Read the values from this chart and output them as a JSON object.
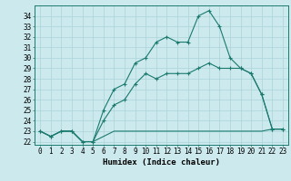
{
  "xlabel": "Humidex (Indice chaleur)",
  "bg_color": "#cce9ed",
  "grid_color": "#aad4d9",
  "line_color": "#1a7a6e",
  "x_hours": [
    0,
    1,
    2,
    3,
    4,
    5,
    6,
    7,
    8,
    9,
    10,
    11,
    12,
    13,
    14,
    15,
    16,
    17,
    18,
    19,
    20,
    21,
    22,
    23
  ],
  "line1": [
    23.0,
    22.5,
    23.0,
    23.0,
    22.0,
    22.0,
    25.0,
    27.0,
    27.5,
    29.5,
    30.0,
    31.5,
    32.0,
    31.5,
    31.5,
    34.0,
    34.5,
    33.0,
    30.0,
    29.0,
    28.5,
    26.5,
    23.2,
    23.2
  ],
  "line2": [
    23.0,
    22.5,
    23.0,
    23.0,
    22.0,
    22.0,
    24.0,
    25.5,
    26.0,
    27.5,
    28.5,
    28.0,
    28.5,
    28.5,
    28.5,
    29.0,
    29.5,
    29.0,
    29.0,
    29.0,
    28.5,
    26.5,
    23.2,
    23.2
  ],
  "line3": [
    23.0,
    22.5,
    23.0,
    23.0,
    22.0,
    22.0,
    22.5,
    23.0,
    23.0,
    23.0,
    23.0,
    23.0,
    23.0,
    23.0,
    23.0,
    23.0,
    23.0,
    23.0,
    23.0,
    23.0,
    23.0,
    23.0,
    23.2,
    23.2
  ],
  "xlim": [
    -0.5,
    23.5
  ],
  "ylim": [
    21.7,
    35.0
  ],
  "yticks": [
    22,
    23,
    24,
    25,
    26,
    27,
    28,
    29,
    30,
    31,
    32,
    33,
    34
  ],
  "xticks": [
    0,
    1,
    2,
    3,
    4,
    5,
    6,
    7,
    8,
    9,
    10,
    11,
    12,
    13,
    14,
    15,
    16,
    17,
    18,
    19,
    20,
    21,
    22,
    23
  ],
  "tick_fontsize": 5.5,
  "xlabel_fontsize": 6.5
}
